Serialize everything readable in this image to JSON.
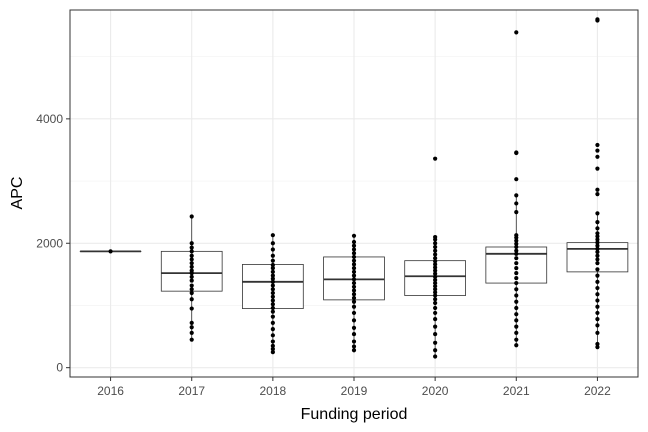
{
  "chart_data": {
    "type": "box",
    "xlabel": "Funding period",
    "ylabel": "APC",
    "categories": [
      "2016",
      "2017",
      "2018",
      "2019",
      "2020",
      "2021",
      "2022"
    ],
    "ylim": [
      -150,
      5750
    ],
    "yticks": [
      0,
      2000,
      4000
    ],
    "grid": true,
    "theme": "black-and-white",
    "boxes": [
      {
        "x": "2016",
        "q1": 1870,
        "median": 1870,
        "q3": 1870,
        "whisker_low": 1870,
        "whisker_high": 1870
      },
      {
        "x": "2017",
        "q1": 1230,
        "median": 1520,
        "q3": 1870,
        "whisker_low": 450,
        "whisker_high": 2430
      },
      {
        "x": "2018",
        "q1": 950,
        "median": 1380,
        "q3": 1660,
        "whisker_low": 250,
        "whisker_high": 2130
      },
      {
        "x": "2019",
        "q1": 1090,
        "median": 1420,
        "q3": 1780,
        "whisker_low": 280,
        "whisker_high": 2120
      },
      {
        "x": "2020",
        "q1": 1160,
        "median": 1470,
        "q3": 1720,
        "whisker_low": 180,
        "whisker_high": 2100
      },
      {
        "x": "2021",
        "q1": 1360,
        "median": 1830,
        "q3": 1940,
        "whisker_low": 360,
        "whisker_high": 2770
      },
      {
        "x": "2022",
        "q1": 1540,
        "median": 1910,
        "q3": 2010,
        "whisker_low": 330,
        "whisker_high": 2480
      }
    ],
    "points": {
      "2016": [
        1870
      ],
      "2017": [
        450,
        560,
        650,
        720,
        950,
        1100,
        1200,
        1260,
        1320,
        1400,
        1460,
        1520,
        1560,
        1620,
        1680,
        1740,
        1800,
        1870,
        1930,
        2000,
        2430
      ],
      "2018": [
        250,
        300,
        350,
        420,
        520,
        620,
        720,
        820,
        900,
        960,
        1020,
        1080,
        1140,
        1200,
        1260,
        1320,
        1380,
        1430,
        1480,
        1540,
        1600,
        1650,
        1720,
        1800,
        1900,
        2000,
        2130
      ],
      "2019": [
        280,
        340,
        420,
        540,
        640,
        760,
        880,
        980,
        1060,
        1120,
        1180,
        1240,
        1300,
        1360,
        1420,
        1480,
        1540,
        1600,
        1660,
        1720,
        1780,
        1840,
        1900,
        1960,
        2020,
        2120
      ],
      "2020": [
        180,
        280,
        400,
        540,
        660,
        780,
        880,
        960,
        1040,
        1100,
        1160,
        1210,
        1260,
        1310,
        1360,
        1410,
        1460,
        1510,
        1560,
        1610,
        1660,
        1710,
        1760,
        1820,
        1880,
        1940,
        2000,
        2060,
        2100,
        3360
      ],
      "2021": [
        360,
        450,
        560,
        660,
        760,
        860,
        960,
        1060,
        1160,
        1260,
        1360,
        1440,
        1520,
        1600,
        1680,
        1760,
        1830,
        1880,
        1940,
        1990,
        2040,
        2090,
        2130,
        2500,
        2640,
        2770,
        3030,
        3450,
        3460,
        5390
      ],
      "2022": [
        330,
        380,
        560,
        680,
        780,
        880,
        980,
        1080,
        1180,
        1280,
        1380,
        1480,
        1580,
        1680,
        1740,
        1800,
        1860,
        1910,
        1960,
        2010,
        2060,
        2110,
        2160,
        2240,
        2340,
        2480,
        2790,
        2860,
        3200,
        3390,
        3490,
        3580,
        5580,
        5600
      ]
    }
  }
}
